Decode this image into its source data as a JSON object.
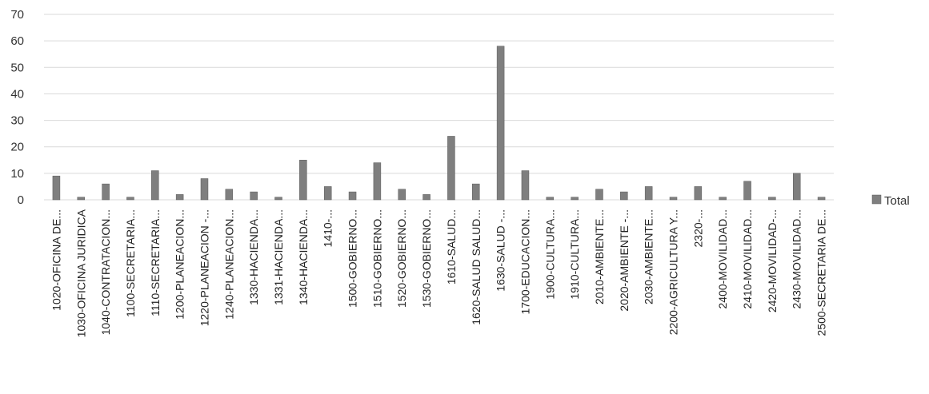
{
  "chart_data": {
    "type": "bar",
    "categories": [
      "1020-OFICINA DE...",
      "1030-OFICINA JURIDICA",
      "1040-CONTRATACION...",
      "1100-SECRETARIA...",
      "1110-SECRETARIA...",
      "1200-PLANEACION...",
      "1220-PLANEACION -...",
      "1240-PLANEACION...",
      "1330-HACIENDA...",
      "1331-HACIENDA...",
      "1340-HACIENDA...",
      "1410-...",
      "1500-GOBIERNO...",
      "1510-GOBIERNO...",
      "1520-GOBIERNO...",
      "1530-GOBIERNO...",
      "1610-SALUD...",
      "1620-SALUD SALUD...",
      "1630-SALUD -...",
      "1700-EDUCACION...",
      "1900-CULTURA...",
      "1910-CULTURA...",
      "2010-AMBIENTE...",
      "2020-AMBIENTE -...",
      "2030-AMBIENTE...",
      "2200-AGRICULTURA Y...",
      "2320-...",
      "2400-MOVILIDAD...",
      "2410-MOVILIDAD...",
      "2420-MOVILIDAD-...",
      "2430-MOVILIDAD...",
      "2500-SECRETARIA DE..."
    ],
    "series": [
      {
        "name": "Total",
        "values": [
          9,
          1,
          6,
          1,
          11,
          2,
          8,
          4,
          3,
          1,
          15,
          5,
          3,
          14,
          4,
          2,
          24,
          6,
          58,
          11,
          1,
          1,
          4,
          3,
          5,
          1,
          5,
          1,
          7,
          1,
          10,
          1
        ]
      }
    ],
    "ylim": [
      0,
      70
    ],
    "yticks": [
      0,
      10,
      20,
      30,
      40,
      50,
      60,
      70
    ],
    "grid": true,
    "legend": "right",
    "colors": {
      "bar": "#7f7f7f",
      "bar_edge": "#5a5a5a",
      "grid": "#d9d9d9"
    }
  }
}
